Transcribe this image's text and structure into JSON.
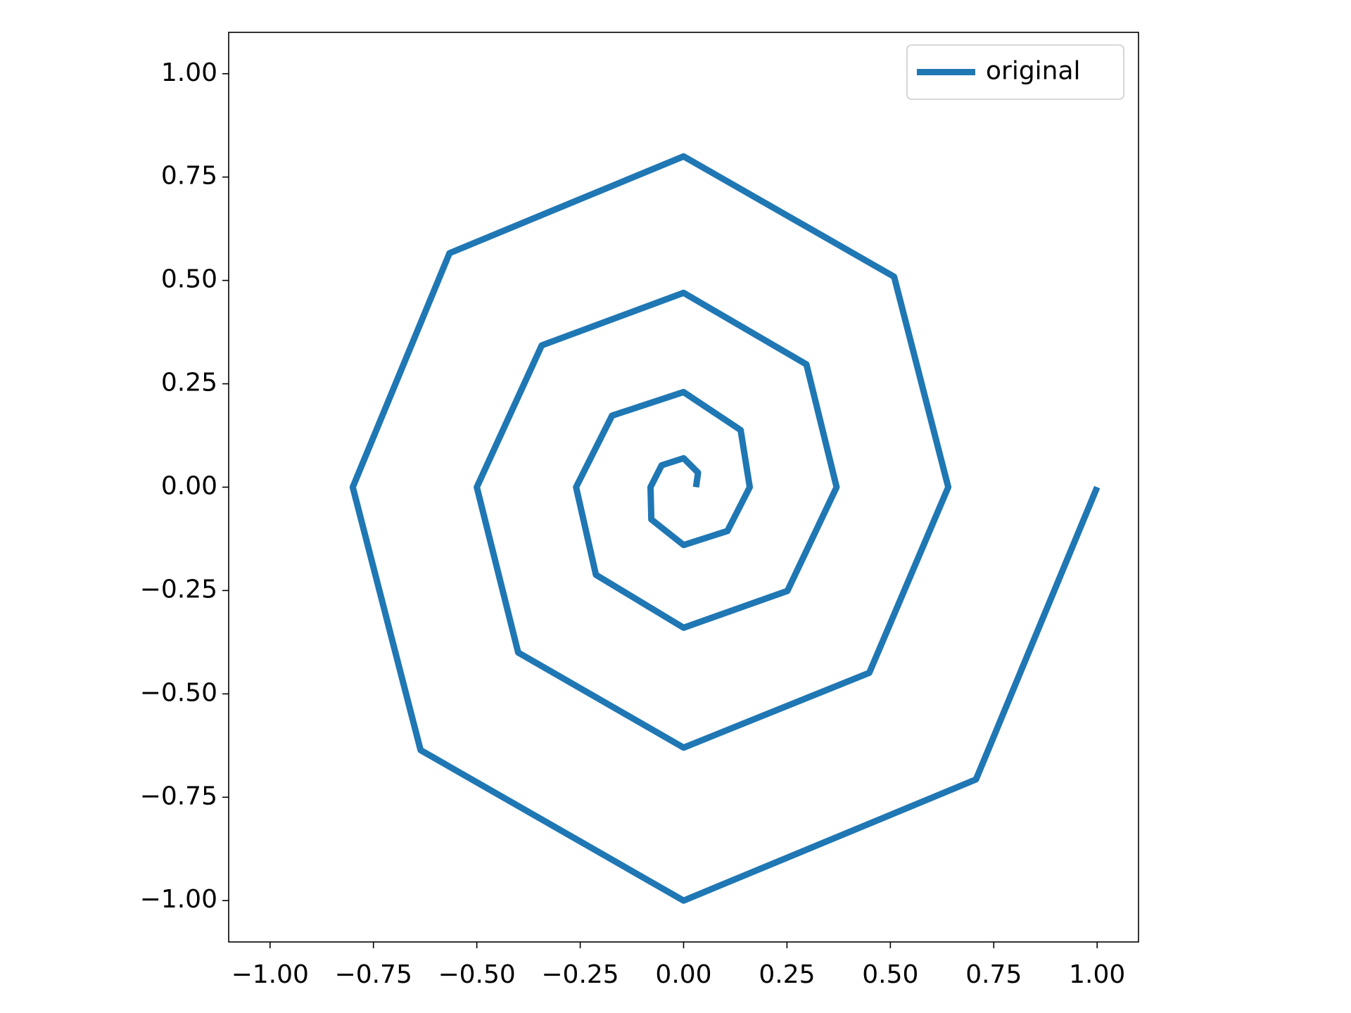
{
  "chart_data": {
    "type": "line",
    "x": [
      0.03,
      0.035,
      0,
      -0.053,
      -0.08,
      -0.078,
      0,
      0.106,
      0.16,
      0.138,
      0,
      -0.173,
      -0.26,
      -0.212,
      0,
      0.251,
      0.37,
      0.297,
      0,
      -0.343,
      -0.5,
      -0.4,
      0,
      0.449,
      0.64,
      0.509,
      0,
      -0.566,
      -0.8,
      -0.636,
      0,
      0.707,
      1.0
    ],
    "series": [
      {
        "name": "original",
        "color": "#1f77b4",
        "values": [
          0,
          0.035,
          0.07,
          0.053,
          0,
          -0.078,
          -0.14,
          -0.106,
          0,
          0.138,
          0.23,
          0.173,
          0,
          -0.212,
          -0.34,
          -0.251,
          0,
          0.297,
          0.47,
          0.343,
          0,
          -0.4,
          -0.63,
          -0.449,
          0,
          0.509,
          0.8,
          0.566,
          0,
          -0.636,
          -1.0,
          -0.707,
          0
        ]
      }
    ],
    "xlim": [
      -1.1,
      1.1
    ],
    "ylim": [
      -1.1,
      1.1
    ],
    "xticks": [
      {
        "value": -1,
        "label": "−1.00"
      },
      {
        "value": -0.75,
        "label": "−0.75"
      },
      {
        "value": -0.5,
        "label": "−0.50"
      },
      {
        "value": -0.25,
        "label": "−0.25"
      },
      {
        "value": 0,
        "label": "0.00"
      },
      {
        "value": 0.25,
        "label": "0.25"
      },
      {
        "value": 0.5,
        "label": "0.50"
      },
      {
        "value": 0.75,
        "label": "0.75"
      },
      {
        "value": 1,
        "label": "1.00"
      }
    ],
    "yticks": [
      {
        "value": -1,
        "label": "−1.00"
      },
      {
        "value": -0.75,
        "label": "−0.75"
      },
      {
        "value": -0.5,
        "label": "−0.50"
      },
      {
        "value": -0.25,
        "label": "−0.25"
      },
      {
        "value": 0,
        "label": "0.00"
      },
      {
        "value": 0.25,
        "label": "0.25"
      },
      {
        "value": 0.5,
        "label": "0.50"
      },
      {
        "value": 0.75,
        "label": "0.75"
      },
      {
        "value": 1,
        "label": "1.00"
      }
    ],
    "legend": "upper right"
  }
}
